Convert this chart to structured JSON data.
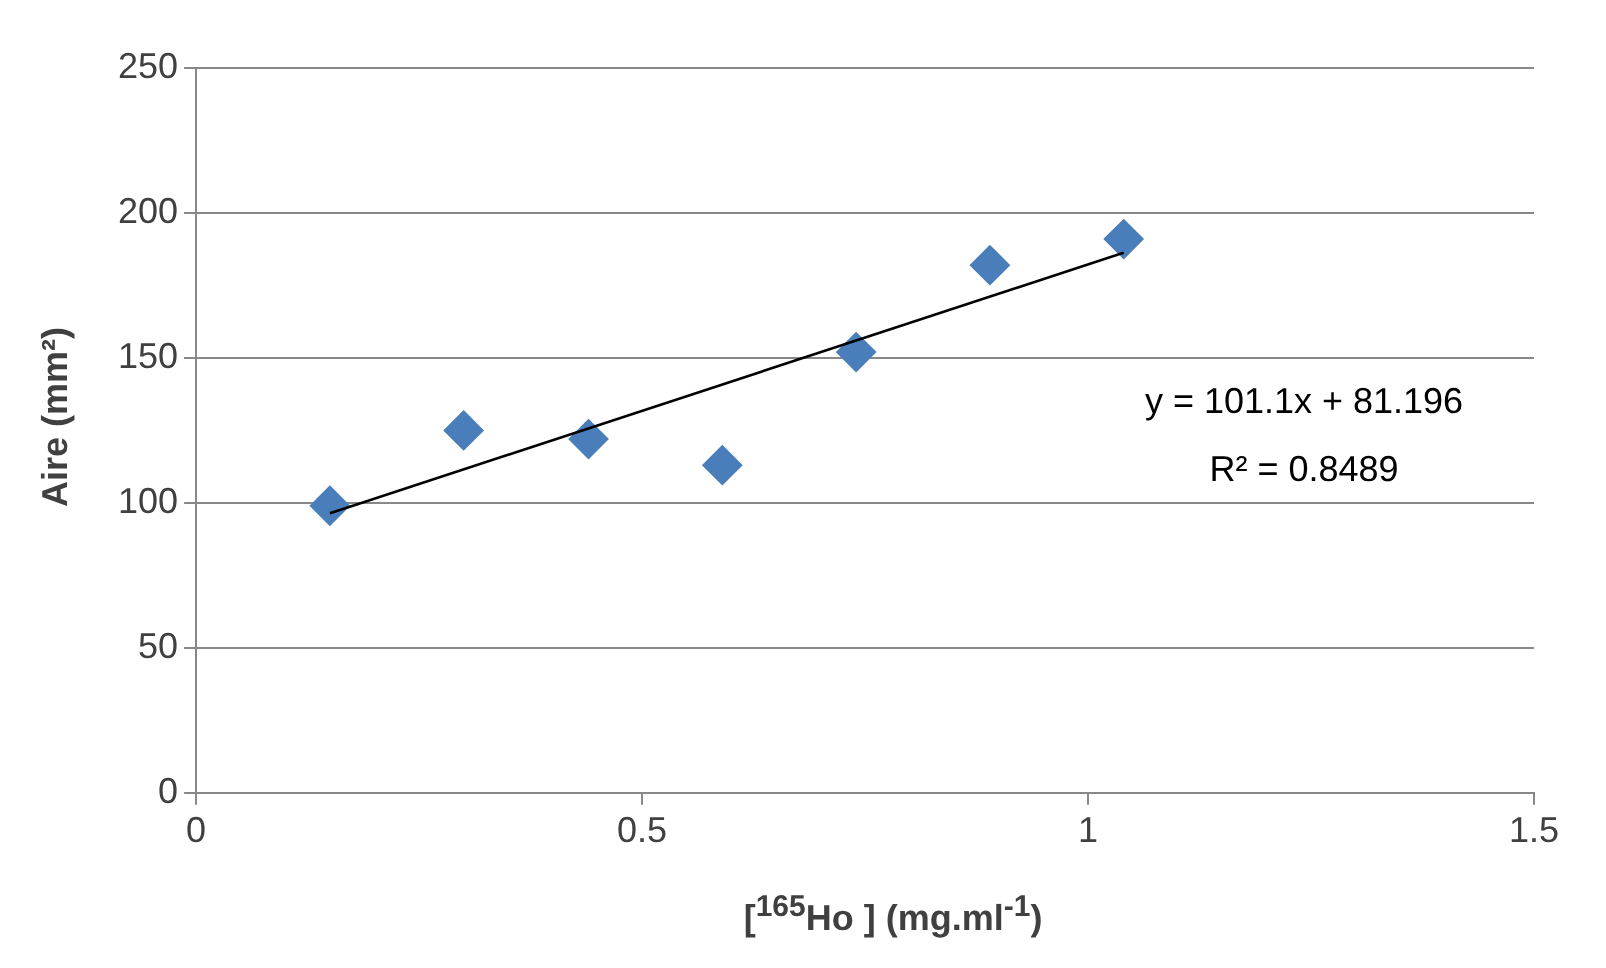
{
  "chart_data": {
    "type": "scatter",
    "xlabel": "[$^{165}$Ho ] (mg.ml$^{-1}$)",
    "ylabel": "Aire (mm²)",
    "x": [
      0.15,
      0.3,
      0.44,
      0.59,
      0.74,
      0.89,
      1.04
    ],
    "series": [
      {
        "marker": "diamond",
        "color": "#4a7ebb",
        "values": [
          99,
          125,
          122,
          113,
          152,
          182,
          191
        ]
      },
      {
        "type": "line",
        "marker": "none",
        "color": "#000000",
        "x": [
          0.15,
          1.04
        ],
        "values": [
          96.4,
          186.3
        ]
      }
    ],
    "xlim": [
      0,
      1.5
    ],
    "xticks": [
      0,
      0.5,
      1,
      1.5
    ],
    "ylim": [
      0,
      250
    ],
    "yticks": [
      0,
      50,
      100,
      150,
      200,
      250
    ],
    "grid": "y",
    "legend": false,
    "annotations": [
      "y = 101.1x + 81.196",
      "R² = 0.8489"
    ]
  }
}
